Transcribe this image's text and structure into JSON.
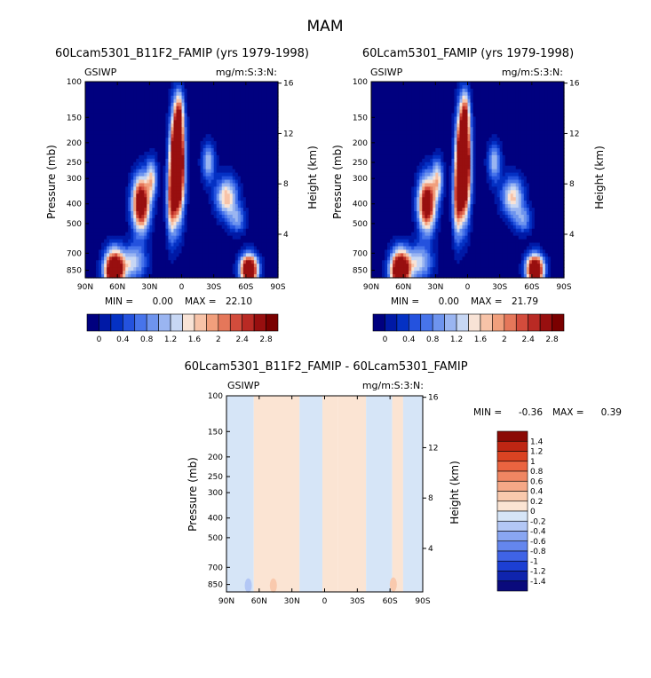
{
  "page": {
    "main_title": "MAM"
  },
  "chart_data": [
    {
      "type": "heatmap",
      "id": "p1",
      "title": "60Lcam5301_B11F2_FAMIP (yrs 1979-1998)",
      "left_label": "GSIWP",
      "right_label": "mg/m:S:3:N:",
      "xlabel": "",
      "ylabel": "Pressure (mb)",
      "ylabel_right": "Height (km)",
      "x_ticks": [
        "90N",
        "60N",
        "30N",
        "0",
        "30S",
        "60S",
        "90S"
      ],
      "x_tick_values": [
        90,
        60,
        30,
        0,
        -30,
        -60,
        -90
      ],
      "y_ticks": [
        "100",
        "150",
        "200",
        "250",
        "300",
        "400",
        "500",
        "700",
        "850"
      ],
      "y_tick_values": [
        100,
        150,
        200,
        250,
        300,
        400,
        500,
        700,
        850
      ],
      "y_right_ticks": [
        "16",
        "12",
        "8",
        "4"
      ],
      "y_right_tick_values": [
        16,
        12,
        8,
        4
      ],
      "ylim": [
        100,
        925
      ],
      "min_label": "MIN =",
      "min_value": "0.00",
      "max_label": "MAX =",
      "max_value": "22.10",
      "colorbar_labels": [
        "0",
        "0.4",
        "0.8",
        "1.2",
        "1.6",
        "2",
        "2.4",
        "2.8"
      ],
      "colorbar_levels": [
        0,
        0.2,
        0.4,
        0.6,
        0.8,
        1.0,
        1.2,
        1.4,
        1.6,
        1.8,
        2.0,
        2.2,
        2.4,
        2.6,
        2.8,
        3.0
      ],
      "features": [
        {
          "lat": 63,
          "p": 850,
          "amp": 4.2,
          "slat": 9,
          "sp": 0.22
        },
        {
          "lat": 45,
          "p": 780,
          "amp": 1.4,
          "slat": 12,
          "sp": 0.2
        },
        {
          "lat": 38,
          "p": 400,
          "amp": 3.6,
          "slat": 8,
          "sp": 0.3
        },
        {
          "lat": 28,
          "p": 300,
          "amp": 1.6,
          "slat": 5,
          "sp": 0.22
        },
        {
          "lat": 4,
          "p": 250,
          "amp": 6.0,
          "slat": 6,
          "sp": 0.55
        },
        {
          "lat": 10,
          "p": 400,
          "amp": 1.8,
          "slat": 4,
          "sp": 0.4
        },
        {
          "lat": 2,
          "p": 140,
          "amp": 1.2,
          "slat": 4,
          "sp": 0.22
        },
        {
          "lat": -25,
          "p": 250,
          "amp": 1.3,
          "slat": 6,
          "sp": 0.22
        },
        {
          "lat": -42,
          "p": 370,
          "amp": 1.9,
          "slat": 10,
          "sp": 0.22
        },
        {
          "lat": -52,
          "p": 480,
          "amp": 1.0,
          "slat": 8,
          "sp": 0.15
        },
        {
          "lat": -63,
          "p": 840,
          "amp": 4.2,
          "slat": 8,
          "sp": 0.16
        }
      ]
    },
    {
      "type": "heatmap",
      "id": "p2",
      "title": "60Lcam5301_FAMIP (yrs 1979-1998)",
      "left_label": "GSIWP",
      "right_label": "mg/m:S:3:N:",
      "xlabel": "",
      "ylabel": "Pressure (mb)",
      "ylabel_right": "Height (km)",
      "x_ticks": [
        "90N",
        "60N",
        "30N",
        "0",
        "30S",
        "60S",
        "90S"
      ],
      "x_tick_values": [
        90,
        60,
        30,
        0,
        -30,
        -60,
        -90
      ],
      "y_ticks": [
        "100",
        "150",
        "200",
        "250",
        "300",
        "400",
        "500",
        "700",
        "850"
      ],
      "y_tick_values": [
        100,
        150,
        200,
        250,
        300,
        400,
        500,
        700,
        850
      ],
      "y_right_ticks": [
        "16",
        "12",
        "8",
        "4"
      ],
      "y_right_tick_values": [
        16,
        12,
        8,
        4
      ],
      "ylim": [
        100,
        925
      ],
      "min_label": "MIN =",
      "min_value": "0.00",
      "max_label": "MAX =",
      "max_value": "21.79",
      "colorbar_labels": [
        "0",
        "0.4",
        "0.8",
        "1.2",
        "1.6",
        "2",
        "2.4",
        "2.8"
      ],
      "colorbar_levels": [
        0,
        0.2,
        0.4,
        0.6,
        0.8,
        1.0,
        1.2,
        1.4,
        1.6,
        1.8,
        2.0,
        2.2,
        2.4,
        2.6,
        2.8,
        3.0
      ],
      "features": [
        {
          "lat": 63,
          "p": 850,
          "amp": 4.2,
          "slat": 9,
          "sp": 0.22
        },
        {
          "lat": 45,
          "p": 780,
          "amp": 1.4,
          "slat": 12,
          "sp": 0.2
        },
        {
          "lat": 38,
          "p": 400,
          "amp": 3.5,
          "slat": 8,
          "sp": 0.3
        },
        {
          "lat": 28,
          "p": 300,
          "amp": 1.6,
          "slat": 5,
          "sp": 0.22
        },
        {
          "lat": 4,
          "p": 250,
          "amp": 6.0,
          "slat": 6,
          "sp": 0.55
        },
        {
          "lat": 10,
          "p": 400,
          "amp": 1.8,
          "slat": 4,
          "sp": 0.4
        },
        {
          "lat": 2,
          "p": 140,
          "amp": 1.2,
          "slat": 4,
          "sp": 0.22
        },
        {
          "lat": -25,
          "p": 250,
          "amp": 1.3,
          "slat": 6,
          "sp": 0.22
        },
        {
          "lat": -42,
          "p": 370,
          "amp": 1.8,
          "slat": 10,
          "sp": 0.22
        },
        {
          "lat": -52,
          "p": 480,
          "amp": 1.0,
          "slat": 8,
          "sp": 0.15
        },
        {
          "lat": -63,
          "p": 840,
          "amp": 4.2,
          "slat": 8,
          "sp": 0.16
        }
      ]
    },
    {
      "type": "heatmap",
      "id": "p3",
      "title": "60Lcam5301_B11F2_FAMIP - 60Lcam5301_FAMIP",
      "left_label": "GSIWP",
      "right_label": "mg/m:S:3:N:",
      "xlabel": "",
      "ylabel": "Pressure (mb)",
      "ylabel_right": "Height (km)",
      "x_ticks": [
        "90N",
        "60N",
        "30N",
        "0",
        "30S",
        "60S",
        "90S"
      ],
      "x_tick_values": [
        90,
        60,
        30,
        0,
        -30,
        -60,
        -90
      ],
      "y_ticks": [
        "100",
        "150",
        "200",
        "250",
        "300",
        "400",
        "500",
        "700",
        "850"
      ],
      "y_tick_values": [
        100,
        150,
        200,
        250,
        300,
        400,
        500,
        700,
        850
      ],
      "y_right_ticks": [
        "16",
        "12",
        "8",
        "4"
      ],
      "y_right_tick_values": [
        16,
        12,
        8,
        4
      ],
      "ylim": [
        100,
        925
      ],
      "min_label": "MIN =",
      "min_value": "-0.36",
      "max_label": "MAX =",
      "max_value": "0.39",
      "colorbar_labels": [
        "1.4",
        "1.2",
        "1",
        "0.8",
        "0.6",
        "0.4",
        "0.2",
        "0",
        "-0.2",
        "-0.4",
        "-0.6",
        "-0.8",
        "-1",
        "-1.2",
        "-1.4"
      ],
      "colorbar_levels": [
        -1.6,
        -1.4,
        -1.2,
        -1.0,
        -0.8,
        -0.6,
        -0.4,
        -0.2,
        0,
        0.2,
        0.4,
        0.6,
        0.8,
        1.0,
        1.2,
        1.4,
        1.6
      ],
      "diff_columns": [
        {
          "lat_from": 90,
          "lat_to": 65,
          "sign": -1
        },
        {
          "lat_from": 65,
          "lat_to": 23,
          "sign": 1
        },
        {
          "lat_from": 23,
          "lat_to": 2,
          "sign": -1
        },
        {
          "lat_from": 2,
          "lat_to": -12,
          "sign": 1
        },
        {
          "lat_from": -12,
          "lat_to": -38,
          "sign": 1
        },
        {
          "lat_from": -38,
          "lat_to": -62,
          "sign": -1
        },
        {
          "lat_from": -62,
          "lat_to": -72,
          "sign": 1
        },
        {
          "lat_from": -72,
          "lat_to": -90,
          "sign": -1
        }
      ],
      "diff_hotspots": [
        {
          "lat": 47,
          "p": 860,
          "value": 0.39
        },
        {
          "lat": 70,
          "p": 860,
          "value": -0.36
        },
        {
          "lat": -63,
          "p": 850,
          "value": 0.3
        }
      ]
    }
  ]
}
